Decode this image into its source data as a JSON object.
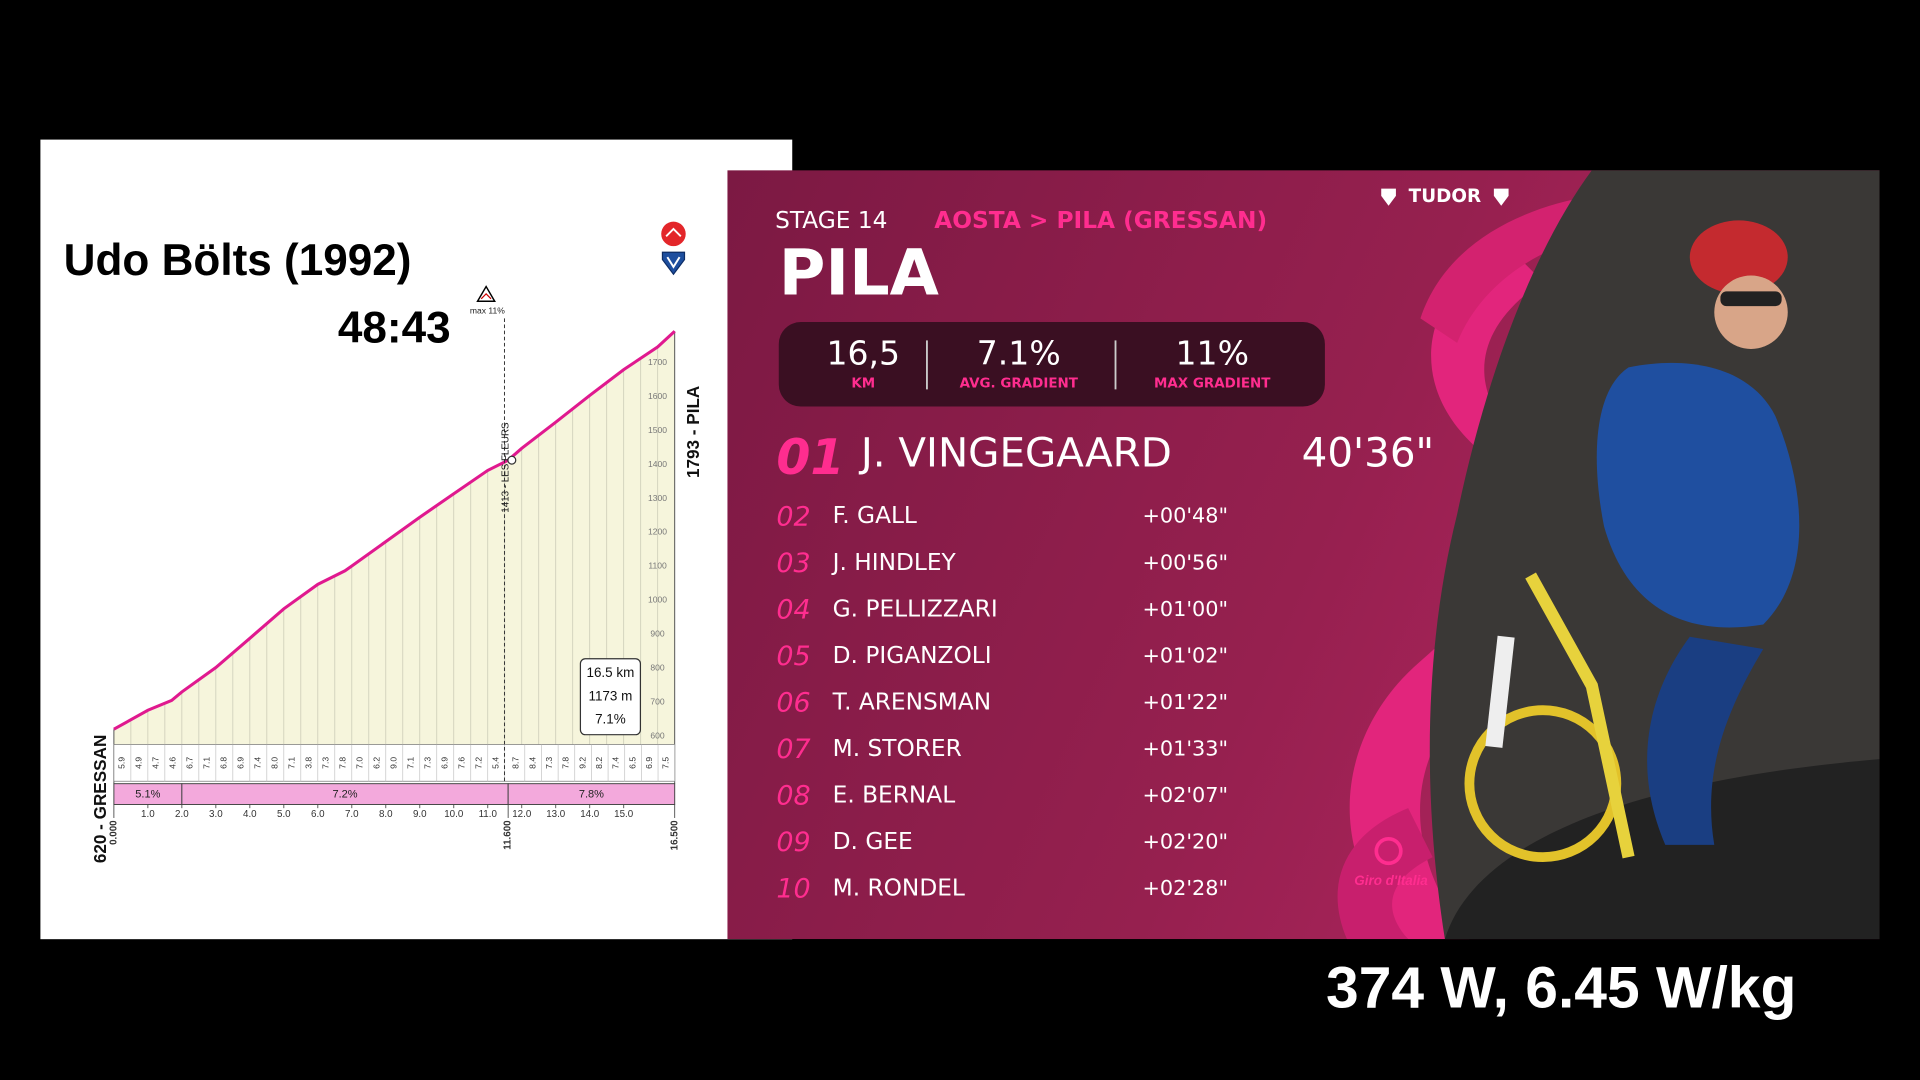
{
  "record": {
    "rider": "Udo Bölts (1992)",
    "time": "48:43"
  },
  "chart_data": {
    "type": "line",
    "color": "#e0198f",
    "x": [
      0,
      1,
      1.7,
      2,
      3,
      4,
      5,
      6,
      6.8,
      7,
      8,
      9,
      10,
      11,
      11.6,
      12,
      13,
      14,
      15,
      16,
      16.5
    ],
    "values": [
      620,
      676,
      705,
      730,
      802,
      888,
      975,
      1047,
      1087,
      1101,
      1173,
      1245,
      1314,
      1383,
      1413,
      1448,
      1525,
      1604,
      1680,
      1747,
      1793
    ],
    "xlim": [
      0,
      16.5
    ],
    "ylim": [
      575,
      1860
    ],
    "yticks": [
      600,
      700,
      800,
      900,
      1000,
      1100,
      1200,
      1300,
      1400,
      1500,
      1600,
      1700
    ],
    "xticks": [
      {
        "value": 1,
        "label": "1.0"
      },
      {
        "value": 2,
        "label": "2.0"
      },
      {
        "value": 3,
        "label": "3.0"
      },
      {
        "value": 4,
        "label": "4.0"
      },
      {
        "value": 5,
        "label": "5.0"
      },
      {
        "value": 6,
        "label": "6.0"
      },
      {
        "value": 7,
        "label": "7.0"
      },
      {
        "value": 8,
        "label": "8.0"
      },
      {
        "value": 9,
        "label": "9.0"
      },
      {
        "value": 10,
        "label": "10.0"
      },
      {
        "value": 11,
        "label": "11.0"
      },
      {
        "value": 12,
        "label": "12.0"
      },
      {
        "value": 13,
        "label": "13.0"
      },
      {
        "value": 14,
        "label": "14.0"
      },
      {
        "value": 15,
        "label": "15.0"
      }
    ],
    "km_marks": [
      {
        "value": 0,
        "label": "0.000"
      },
      {
        "value": 11.6,
        "label": "11.600"
      },
      {
        "value": 16.5,
        "label": "16.500"
      }
    ],
    "start_label": "620 - GRESSAN",
    "summit_label": "1793 - PILA",
    "waypoint": {
      "km": 11.6,
      "elevation": 1413,
      "label": "1413 - LES FLEURS"
    },
    "max_gradient_label": "max 11%",
    "summary": [
      "16.5 km",
      "1173 m",
      "7.1%"
    ],
    "sections": [
      {
        "start": 0,
        "end": 2,
        "value": 5.1,
        "label": "5.1%"
      },
      {
        "start": 2,
        "end": 11.6,
        "value": 7.2,
        "label": "7.2%"
      },
      {
        "start": 11.6,
        "end": 16.5,
        "value": 7.8,
        "label": "7.8%"
      }
    ],
    "segment_gradients": {
      "values": [
        5.9,
        4.9,
        4.7,
        4.6,
        6.7,
        7.1,
        6.8,
        6.9,
        7.4,
        8,
        7.1,
        3.8,
        7.3,
        7.8,
        7,
        6.2,
        9,
        7.1,
        7.3,
        6.9,
        7.6,
        7.2,
        5.4,
        8.7,
        8.4,
        7.3,
        7.8,
        9.2,
        8.2,
        7.4,
        6.5,
        6.9,
        7.5
      ],
      "value_labels": [
        "5.9",
        "4.9",
        "4.7",
        "4.6",
        "6.7",
        "7.1",
        "6.8",
        "6.9",
        "7.4",
        "8.0",
        "7.1",
        "3.8",
        "7.3",
        "7.8",
        "7.0",
        "6.2",
        "9.0",
        "7.1",
        "7.3",
        "6.9",
        "7.6",
        "7.2",
        "5.4",
        "8.7",
        "8.4",
        "7.3",
        "7.8",
        "9.2",
        "8.2",
        "7.4",
        "6.5",
        "6.9",
        "7.5"
      ]
    }
  },
  "stage": {
    "number": "STAGE 14",
    "route": "AOSTA > PILA (GRESSAN)",
    "finish": "PILA",
    "sponsor": "TUDOR",
    "brand": "Giro d'Italia",
    "stats": [
      {
        "value": "16,5",
        "label": "KM"
      },
      {
        "value": "7.1%",
        "label": "AVG. GRADIENT"
      },
      {
        "value": "11%",
        "label": "MAX GRADIENT"
      }
    ],
    "results": [
      {
        "rank": "01",
        "rider": "J. VINGEGAARD",
        "time": "40'36\""
      },
      {
        "rank": "02",
        "rider": "F. GALL",
        "time": "+00'48\""
      },
      {
        "rank": "03",
        "rider": "J. HINDLEY",
        "time": "+00'56\""
      },
      {
        "rank": "04",
        "rider": "G. PELLIZZARI",
        "time": "+01'00\""
      },
      {
        "rank": "05",
        "rider": "D. PIGANZOLI",
        "time": "+01'02\""
      },
      {
        "rank": "06",
        "rider": "T. ARENSMAN",
        "time": "+01'22\""
      },
      {
        "rank": "07",
        "rider": "M. STORER",
        "time": "+01'33\""
      },
      {
        "rank": "08",
        "rider": "E. BERNAL",
        "time": "+02'07\""
      },
      {
        "rank": "09",
        "rider": "D. GEE",
        "time": "+02'20\""
      },
      {
        "rank": "10",
        "rider": "M. RONDEL",
        "time": "+02'28\""
      }
    ]
  },
  "power": "374 W, 6.45 W/kg"
}
